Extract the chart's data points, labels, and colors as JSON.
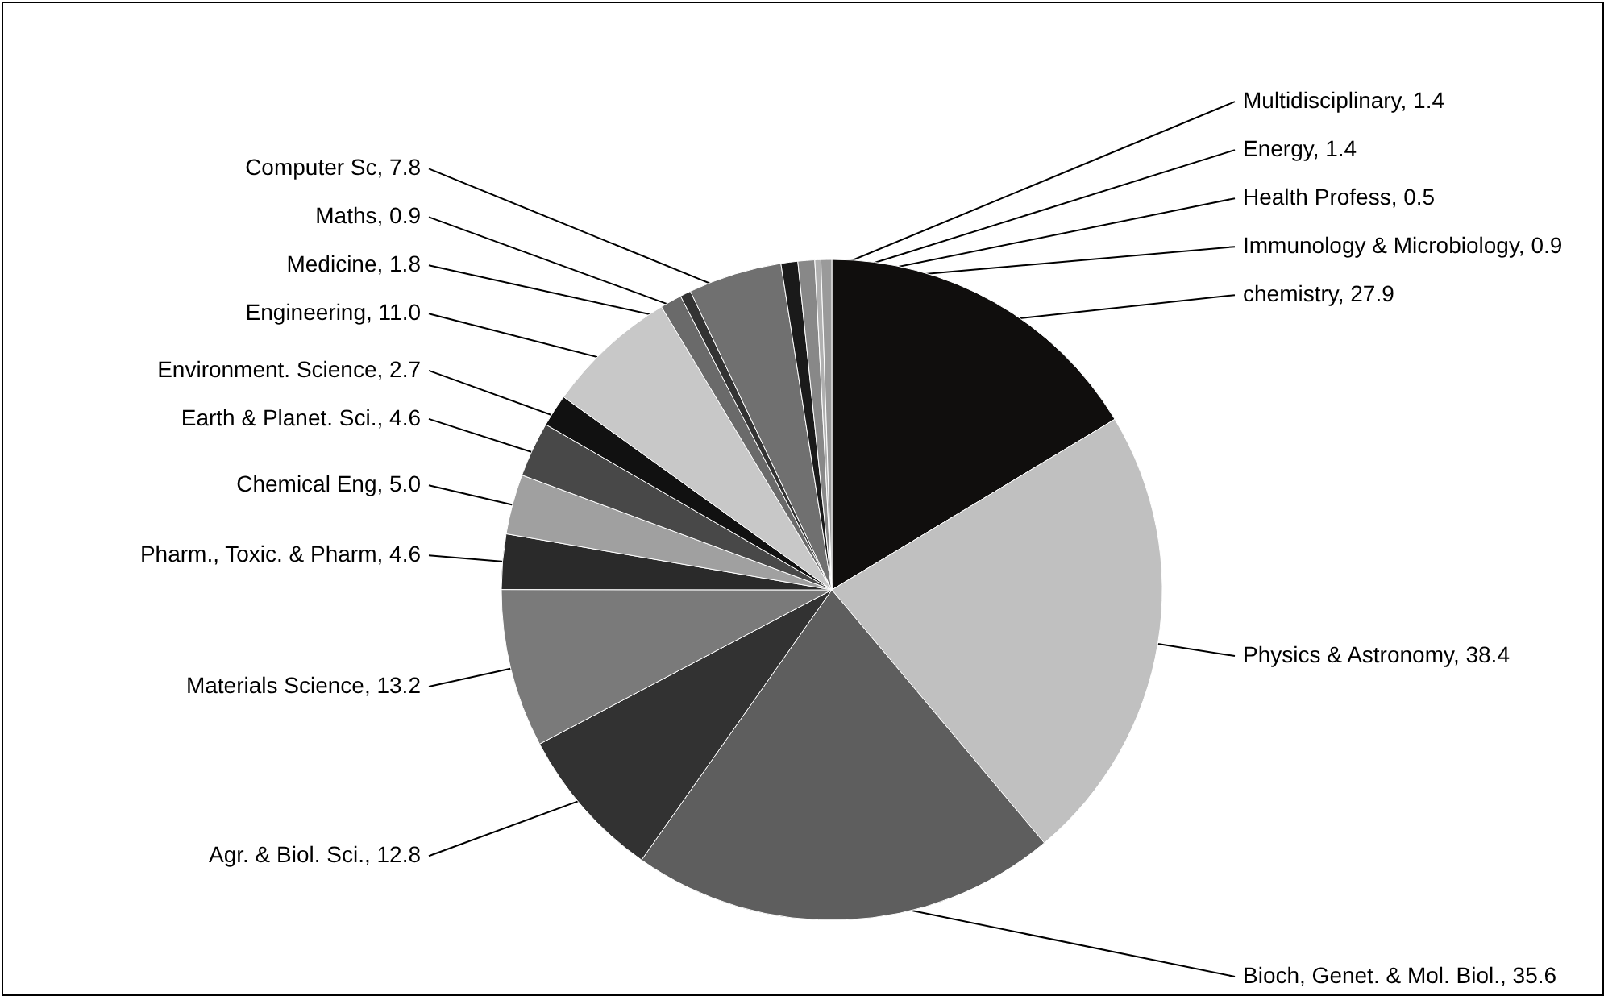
{
  "chart_data": {
    "type": "pie",
    "categories": [
      "chemistry, 27.9",
      "Physics & Astronomy, 38.4",
      "Bioch, Genet. & Mol. Biol., 35.6",
      "Agr. & Biol. Sci., 12.8",
      "Materials Science, 13.2",
      "Pharm., Toxic. & Pharm, 4.6",
      "Chemical Eng, 5.0",
      "Earth & Planet. Sci., 4.6",
      "Environment. Science, 2.7",
      "Engineering, 11.0",
      "Medicine, 1.8",
      "Maths, 0.9",
      "Computer Sc, 7.8",
      "Multidisciplinary, 1.4",
      "Energy, 1.4",
      "Health Profess, 0.5",
      "Immunology & Microbiology, 0.9"
    ],
    "values": [
      27.9,
      38.4,
      35.6,
      12.8,
      13.2,
      4.6,
      5.0,
      4.6,
      2.7,
      11.0,
      1.8,
      0.9,
      7.8,
      1.4,
      1.4,
      0.5,
      0.9
    ],
    "colors": [
      "#100e0d",
      "#c0c0c0",
      "#5e5e5e",
      "#323232",
      "#7a7a7a",
      "#2a2a2a",
      "#a0a0a0",
      "#484848",
      "#111111",
      "#c8c8c8",
      "#6a6a6a",
      "#333333",
      "#707070",
      "#1a1a1a",
      "#888888",
      "#b0b0b0",
      "#9a9a9a"
    ]
  }
}
